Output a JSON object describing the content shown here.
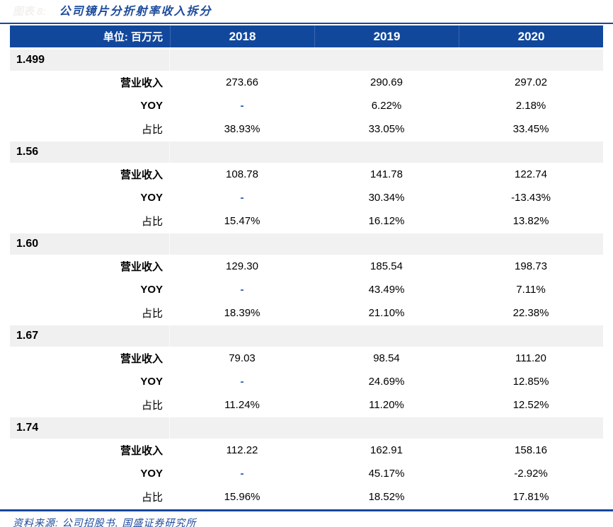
{
  "title": {
    "figure_label": "图表 8:",
    "text": "公司镜片分折射率收入拆分"
  },
  "table": {
    "unit_header": "单位: 百万元",
    "years": [
      "2018",
      "2019",
      "2020"
    ],
    "row_labels": {
      "revenue": "营业收入",
      "yoy": "YOY",
      "share": "占比"
    },
    "sections": [
      {
        "index_label": "1.499",
        "revenue": [
          "273.66",
          "290.69",
          "297.02"
        ],
        "yoy": [
          "-",
          "6.22%",
          "2.18%"
        ],
        "share": [
          "38.93%",
          "33.05%",
          "33.45%"
        ]
      },
      {
        "index_label": "1.56",
        "revenue": [
          "108.78",
          "141.78",
          "122.74"
        ],
        "yoy": [
          "-",
          "30.34%",
          "-13.43%"
        ],
        "share": [
          "15.47%",
          "16.12%",
          "13.82%"
        ]
      },
      {
        "index_label": "1.60",
        "revenue": [
          "129.30",
          "185.54",
          "198.73"
        ],
        "yoy": [
          "-",
          "43.49%",
          "7.11%"
        ],
        "share": [
          "18.39%",
          "21.10%",
          "22.38%"
        ]
      },
      {
        "index_label": "1.67",
        "revenue": [
          "79.03",
          "98.54",
          "111.20"
        ],
        "yoy": [
          "-",
          "24.69%",
          "12.85%"
        ],
        "share": [
          "11.24%",
          "11.20%",
          "12.52%"
        ]
      },
      {
        "index_label": "1.74",
        "revenue": [
          "112.22",
          "162.91",
          "158.16"
        ],
        "yoy": [
          "-",
          "45.17%",
          "-2.92%"
        ],
        "share": [
          "15.96%",
          "18.52%",
          "17.81%"
        ]
      }
    ]
  },
  "footer": {
    "source": "资料来源: 公司招股书, 国盛证券研究所"
  },
  "colors": {
    "header_bg": "#12489c",
    "rule_navy": "#17479e",
    "label_blue": "#1d5ab5",
    "title_blue": "#1b4a9b",
    "band_gray": "#f0f0f0"
  }
}
